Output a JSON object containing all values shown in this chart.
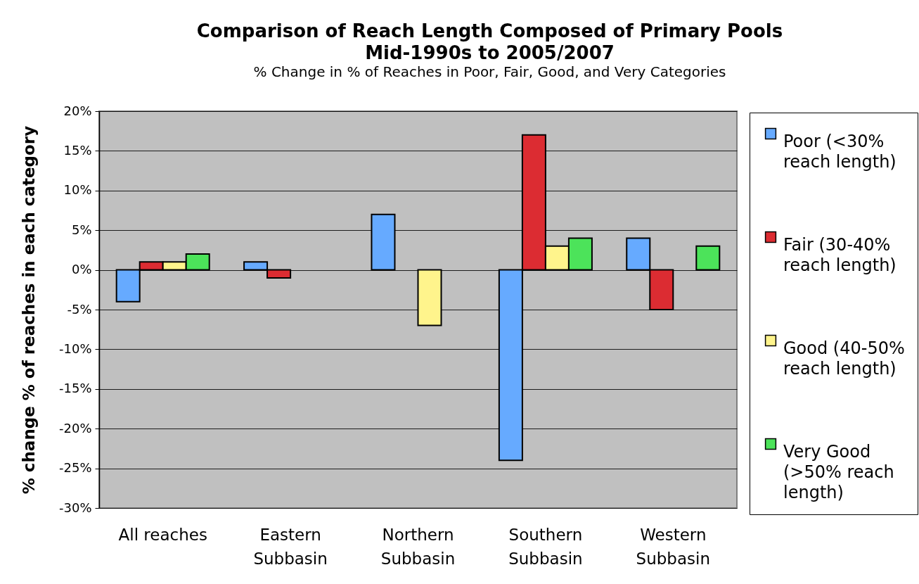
{
  "chart_data": {
    "type": "bar",
    "title": "Comparison of Reach Length Composed of Primary Pools\nMid-1990s to 2005/2007",
    "subtitle": "% Change in % of Reaches in Poor, Fair, Good, and Very Categories",
    "ylabel": "% change % of reaches in each category",
    "categories": [
      "All reaches",
      "Eastern Subbasin",
      "Northern Subbasin",
      "Southern Subbasin",
      "Western Subbasin"
    ],
    "series": [
      {
        "name": "Poor (<30% reach length)",
        "color": "#66aaff",
        "values": [
          -4,
          1,
          7,
          -24,
          4
        ]
      },
      {
        "name": "Fair (30-40% reach length)",
        "color": "#dc2c32",
        "values": [
          1,
          -1,
          null,
          17,
          -5
        ]
      },
      {
        "name": "Good (40-50% reach length)",
        "color": "#fff48c",
        "values": [
          1,
          null,
          -7,
          3,
          null
        ]
      },
      {
        "name": "Very Good (>50% reach length)",
        "color": "#4ce35a",
        "values": [
          2,
          null,
          null,
          4,
          3
        ]
      }
    ],
    "ylim": [
      -30,
      20
    ],
    "yticks": [
      {
        "value": -30,
        "label": "-30%"
      },
      {
        "value": -25,
        "label": "-25%"
      },
      {
        "value": -20,
        "label": "-20%"
      },
      {
        "value": -15,
        "label": "-15%"
      },
      {
        "value": -10,
        "label": "-10%"
      },
      {
        "value": -5,
        "label": "-5%"
      },
      {
        "value": 0,
        "label": "0%"
      },
      {
        "value": 5,
        "label": "5%"
      },
      {
        "value": 10,
        "label": "10%"
      },
      {
        "value": 15,
        "label": "15%"
      },
      {
        "value": 20,
        "label": "20%"
      }
    ],
    "grid": "y",
    "legend": "right"
  }
}
